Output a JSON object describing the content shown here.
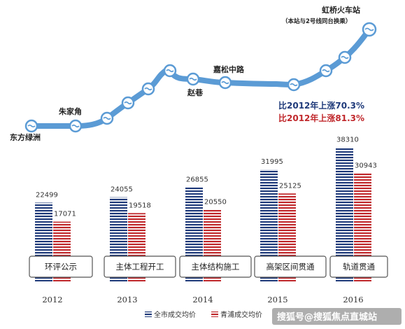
{
  "metro": {
    "stations": [
      {
        "name": "东方绿洲",
        "note": ""
      },
      {
        "name": "朱家角",
        "note": ""
      },
      {
        "name": "赵巷",
        "note": ""
      },
      {
        "name": "嘉松中路",
        "note": ""
      },
      {
        "name": "虹桥火车站",
        "note": "（本站与2号线同台换乘）"
      }
    ],
    "compare_all": "比2012年上涨70.3%",
    "compare_qingpu": "比2012年上涨81.3%",
    "line_color": "#5b9bd5"
  },
  "chart_data": {
    "type": "bar",
    "title": "",
    "xlabel": "",
    "ylabel": "",
    "categories": [
      "2012",
      "2013",
      "2014",
      "2015",
      "2016"
    ],
    "series": [
      {
        "name": "全市成交均价",
        "values": [
          22499,
          24055,
          26855,
          31995,
          38310
        ],
        "color": "#1f3a7a"
      },
      {
        "name": "青浦成交均价",
        "values": [
          17071,
          19518,
          20550,
          25125,
          30943
        ],
        "color": "#c0282c"
      }
    ],
    "ylim": [
      0,
      40000
    ],
    "phases": [
      "环评公示",
      "主体工程开工",
      "主体结构施工",
      "高架区间贯通",
      "轨道贯通"
    ],
    "legend_position": "bottom",
    "grid": false
  },
  "watermark": {
    "text": "搜狐号@搜狐焦点直城站"
  }
}
